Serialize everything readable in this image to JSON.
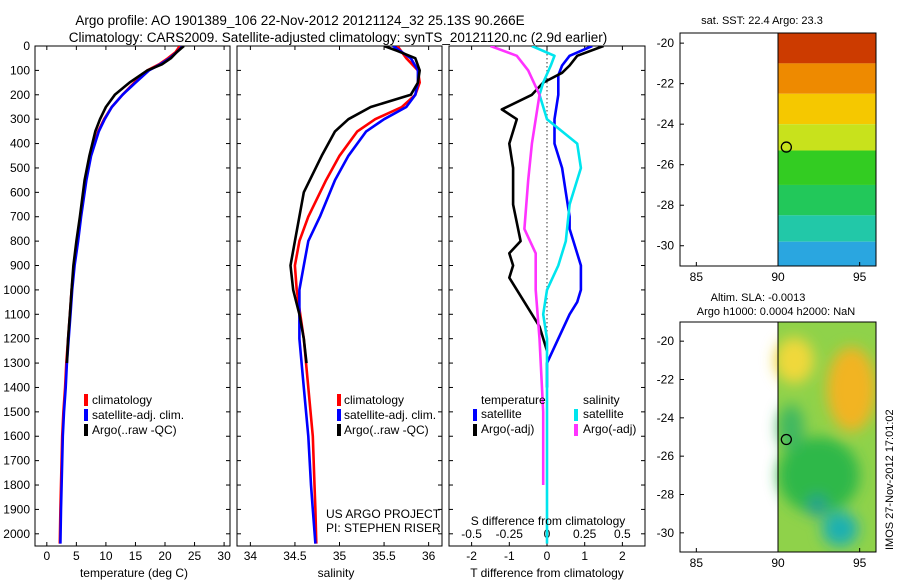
{
  "header": {
    "line1": "Argo profile: AO 1901389_106 22-Nov-2012 20121124_32 25.13S 90.266E",
    "line2": "Climatology: CARS2009. Satellite-adjusted climatology: synTS_20121120.nc (2.9d earlier)"
  },
  "colors": {
    "climatology": "#ff0000",
    "satellite": "#0000ff",
    "argo": "#000000",
    "sat_sal": "#00e5ee",
    "argo_sal": "#ff33ff"
  },
  "credits": {
    "project": "US ARGO PROJECT",
    "pi": "PI: STEPHEN RISER"
  },
  "imos_stamp": "IMOS 27-Nov-2012 17:01:02",
  "chart_data": [
    {
      "type": "line",
      "name": "temperature",
      "xlabel": "temperature (deg C)",
      "xlim": [
        -2,
        31
      ],
      "ylim": [
        2050,
        0
      ],
      "xticks": [
        "0",
        "5",
        "10",
        "15",
        "20",
        "25",
        "30"
      ],
      "xtick_values": [
        0,
        5,
        10,
        15,
        20,
        25,
        30
      ],
      "yticks": [
        "0",
        "100",
        "200",
        "300",
        "400",
        "500",
        "600",
        "700",
        "800",
        "900",
        "1000",
        "1100",
        "1200",
        "1300",
        "1400",
        "1500",
        "1600",
        "1700",
        "1800",
        "1900",
        "2000"
      ],
      "ytick_values": [
        0,
        100,
        200,
        300,
        400,
        500,
        600,
        700,
        800,
        900,
        1000,
        1100,
        1200,
        1300,
        1400,
        1500,
        1600,
        1700,
        1800,
        1900,
        2000
      ],
      "legend": [
        "climatology",
        "satellite-adj. clim.",
        "Argo(..raw -QC)"
      ],
      "series": [
        {
          "name": "climatology",
          "color": "#ff0000",
          "x": [
            22.5,
            21.8,
            20.5,
            19,
            17,
            14.8,
            12.8,
            11,
            9.7,
            8.7,
            7.4,
            6.6,
            5.7,
            5.2,
            4.6,
            4.2,
            3.9,
            3.6,
            3.3,
            3.1,
            2.8,
            2.6,
            2.5,
            2.4,
            2.3,
            2.2
          ],
          "y": [
            0,
            25,
            50,
            75,
            100,
            150,
            200,
            250,
            300,
            350,
            450,
            550,
            700,
            800,
            900,
            1000,
            1100,
            1200,
            1300,
            1400,
            1500,
            1600,
            1700,
            1800,
            1900,
            2040
          ]
        },
        {
          "name": "satellite-adj. clim.",
          "color": "#0000ff",
          "x": [
            23,
            22,
            20.8,
            19.2,
            17.3,
            15,
            12.8,
            11,
            9.8,
            8.8,
            7.5,
            6.7,
            5.8,
            5.3,
            4.7,
            4.3,
            4,
            3.7,
            3.4,
            3.2,
            2.9,
            2.7,
            2.6,
            2.5,
            2.4,
            2.3
          ],
          "y": [
            0,
            25,
            50,
            75,
            100,
            150,
            200,
            250,
            300,
            350,
            450,
            550,
            700,
            800,
            900,
            1000,
            1100,
            1200,
            1300,
            1400,
            1500,
            1600,
            1700,
            1800,
            1900,
            2040
          ]
        },
        {
          "name": "Argo(..raw -QC)",
          "color": "#000000",
          "x": [
            23.2,
            22,
            21,
            19.5,
            17,
            14,
            11.5,
            10,
            9,
            8.2,
            7.2,
            6.4,
            5.6,
            5,
            4.5,
            4.2,
            3.9,
            3.6,
            3.4
          ],
          "y": [
            0,
            25,
            50,
            75,
            100,
            150,
            200,
            250,
            300,
            350,
            450,
            550,
            700,
            800,
            900,
            1000,
            1100,
            1200,
            1300
          ]
        }
      ]
    },
    {
      "type": "line",
      "name": "salinity",
      "xlabel": "salinity",
      "xlim": [
        33.85,
        36.15
      ],
      "ylim": [
        2050,
        0
      ],
      "xticks": [
        "34",
        "34.5",
        "35",
        "35.5",
        "36"
      ],
      "xtick_values": [
        34,
        34.5,
        35,
        35.5,
        36
      ],
      "legend": [
        "climatology",
        "satellite-adj. clim.",
        "Argo(..raw -QC)"
      ],
      "series": [
        {
          "name": "climatology",
          "color": "#ff0000",
          "x": [
            35.65,
            35.75,
            35.88,
            35.9,
            35.85,
            35.7,
            35.4,
            35.2,
            35.0,
            34.85,
            34.65,
            34.55,
            34.5,
            34.52,
            34.6,
            34.65,
            34.7,
            34.72,
            34.73,
            34.74
          ],
          "y": [
            0,
            50,
            100,
            150,
            200,
            250,
            300,
            350,
            450,
            550,
            700,
            800,
            900,
            1000,
            1200,
            1400,
            1600,
            1800,
            1900,
            2040
          ]
        },
        {
          "name": "satellite-adj. clim.",
          "color": "#0000ff",
          "x": [
            35.6,
            35.8,
            35.88,
            35.88,
            35.85,
            35.75,
            35.5,
            35.3,
            35.1,
            34.95,
            34.78,
            34.65,
            34.6,
            34.55,
            34.55,
            34.6,
            34.65,
            34.68,
            34.7,
            34.73
          ],
          "y": [
            0,
            50,
            100,
            150,
            200,
            250,
            300,
            350,
            450,
            550,
            700,
            800,
            900,
            1000,
            1200,
            1400,
            1600,
            1800,
            1900,
            2040
          ]
        },
        {
          "name": "Argo(..raw -QC)",
          "color": "#000000",
          "x": [
            35.5,
            35.65,
            35.85,
            35.9,
            35.88,
            35.8,
            35.35,
            35.1,
            34.95,
            34.8,
            34.6,
            34.5,
            34.45,
            34.48,
            34.55,
            34.6,
            34.63
          ],
          "y": [
            0,
            20,
            50,
            100,
            150,
            200,
            250,
            300,
            350,
            450,
            600,
            800,
            900,
            1000,
            1100,
            1200,
            1300
          ]
        }
      ]
    },
    {
      "type": "line",
      "name": "difference",
      "xlabel": "T difference from climatology",
      "top_label": "S difference from climatology",
      "xlim": [
        -2.6,
        2.6
      ],
      "ylim": [
        2050,
        0
      ],
      "xticks": [
        "-2",
        "-1",
        "0",
        "1",
        "2"
      ],
      "xtick_values": [
        -2,
        -1,
        0,
        1,
        2
      ],
      "top_ticks": [
        "-0.5",
        "-0.25",
        "0",
        "0.25",
        "0.5"
      ],
      "top_tick_values": [
        -2,
        -1,
        0,
        1,
        2
      ],
      "legend_titles": [
        "temperature",
        "salinity"
      ],
      "legend": [
        "satellite",
        "Argo(-adj)",
        "satellite",
        "Argo(-adj)"
      ],
      "series": [
        {
          "name": "satellite (temperature)",
          "color": "#0000ff",
          "x": [
            1.2,
            0.6,
            0.4,
            0.3,
            0.3,
            0.2,
            0.2,
            0.4,
            0.5,
            0.6,
            0.6,
            0.7,
            0.9,
            0.9,
            0.8,
            0.6,
            0.3,
            0,
            0
          ],
          "y": [
            0,
            40,
            80,
            120,
            200,
            300,
            400,
            500,
            600,
            700,
            750,
            800,
            900,
            1000,
            1050,
            1100,
            1200,
            1300,
            1400
          ]
        },
        {
          "name": "Argo(-adj) (temperature)",
          "color": "#000000",
          "x": [
            1.5,
            0.8,
            0.6,
            0.4,
            -0.1,
            -0.4,
            -1.2,
            -0.8,
            -1.0,
            -0.9,
            -0.9,
            -0.7,
            -1.0,
            -0.9,
            -1.0,
            -0.6,
            -0.2,
            0
          ],
          "y": [
            0,
            40,
            80,
            110,
            150,
            200,
            260,
            300,
            400,
            500,
            650,
            800,
            850,
            900,
            950,
            1050,
            1150,
            1250
          ]
        },
        {
          "name": "satellite (salinity)",
          "color": "#00e5ee",
          "x": [
            -0.4,
            0.2,
            0.1,
            -0.1,
            -0.2,
            0,
            0.8,
            0.9,
            0.6,
            0.5,
            0.3,
            0,
            -0.1,
            0,
            0,
            0,
            0
          ],
          "y": [
            0,
            40,
            80,
            150,
            200,
            300,
            400,
            500,
            650,
            800,
            900,
            1000,
            1100,
            1200,
            1500,
            1800,
            2040
          ]
        },
        {
          "name": "Argo(-adj) (salinity)",
          "color": "#ff33ff",
          "x": [
            -1.5,
            -0.8,
            -0.5,
            -0.2,
            -0.3,
            -0.4,
            -0.5,
            -0.6,
            -0.3,
            -0.3,
            -0.2,
            -0.1,
            -0.1
          ],
          "y": [
            0,
            40,
            100,
            200,
            300,
            400,
            550,
            750,
            850,
            1000,
            1200,
            1500,
            1800
          ]
        }
      ]
    },
    {
      "type": "heatmap",
      "name": "sst_map",
      "title": "sat. SST: 22.4  Argo: 23.3",
      "xlim": [
        84,
        96
      ],
      "ylim": [
        -31,
        -19.5
      ],
      "xticks": [
        "85",
        "90",
        "95"
      ],
      "xtick_values": [
        85,
        90,
        95
      ],
      "yticks": [
        "-20",
        "-22",
        "-24",
        "-26",
        "-28",
        "-30"
      ],
      "ytick_values": [
        -20,
        -22,
        -24,
        -26,
        -28,
        -30
      ],
      "data_xlim": [
        90,
        96
      ],
      "argo_position": {
        "lon": 90.266,
        "lat": -25.13
      },
      "bands": [
        {
          "lat_top": -19.5,
          "lat_bottom": -21,
          "color": "#cc3b00"
        },
        {
          "lat_top": -21,
          "lat_bottom": -22.5,
          "color": "#ee8a00"
        },
        {
          "lat_top": -22.5,
          "lat_bottom": -24,
          "color": "#f5c800"
        },
        {
          "lat_top": -24,
          "lat_bottom": -25.3,
          "color": "#c8e21c"
        },
        {
          "lat_top": -25.3,
          "lat_bottom": -27,
          "color": "#33cc22"
        },
        {
          "lat_top": -27,
          "lat_bottom": -28.5,
          "color": "#22c85a"
        },
        {
          "lat_top": -28.5,
          "lat_bottom": -29.8,
          "color": "#22c8a8"
        },
        {
          "lat_top": -29.8,
          "lat_bottom": -31,
          "color": "#2aa6e0"
        }
      ]
    },
    {
      "type": "heatmap",
      "name": "sla_map",
      "title": "Altim. SLA: -0.0013",
      "subtitle": "Argo h1000: 0.0004  h2000: NaN",
      "xlim": [
        84,
        96
      ],
      "ylim": [
        -31,
        -19
      ],
      "xticks": [
        "85",
        "90",
        "95"
      ],
      "xtick_values": [
        85,
        90,
        95
      ],
      "yticks": [
        "-20",
        "-22",
        "-24",
        "-26",
        "-28",
        "-30"
      ],
      "ytick_values": [
        -20,
        -22,
        -24,
        -26,
        -28,
        -30
      ],
      "data_xlim": [
        90,
        96
      ],
      "argo_position": {
        "lon": 90.266,
        "lat": -25.13
      },
      "background": "#8fd24a",
      "blobs": [
        {
          "lon": 94.5,
          "lat": -22.5,
          "rlon": 1.5,
          "rlat": 2.2,
          "color": "#f2b422"
        },
        {
          "lon": 91,
          "lat": -21,
          "rlon": 1.2,
          "rlat": 1.2,
          "color": "#f0d83a"
        },
        {
          "lon": 92.5,
          "lat": -27,
          "rlon": 2.5,
          "rlat": 2.0,
          "color": "#2fb84a"
        },
        {
          "lon": 90.8,
          "lat": -24.5,
          "rlon": 0.8,
          "rlat": 1.2,
          "color": "#3fb860"
        },
        {
          "lon": 93.8,
          "lat": -29.8,
          "rlon": 1.1,
          "rlat": 0.9,
          "color": "#1fb0b0"
        },
        {
          "lon": 92.4,
          "lat": -28.6,
          "rlon": 0.6,
          "rlat": 0.6,
          "color": "#28a090"
        }
      ]
    }
  ]
}
